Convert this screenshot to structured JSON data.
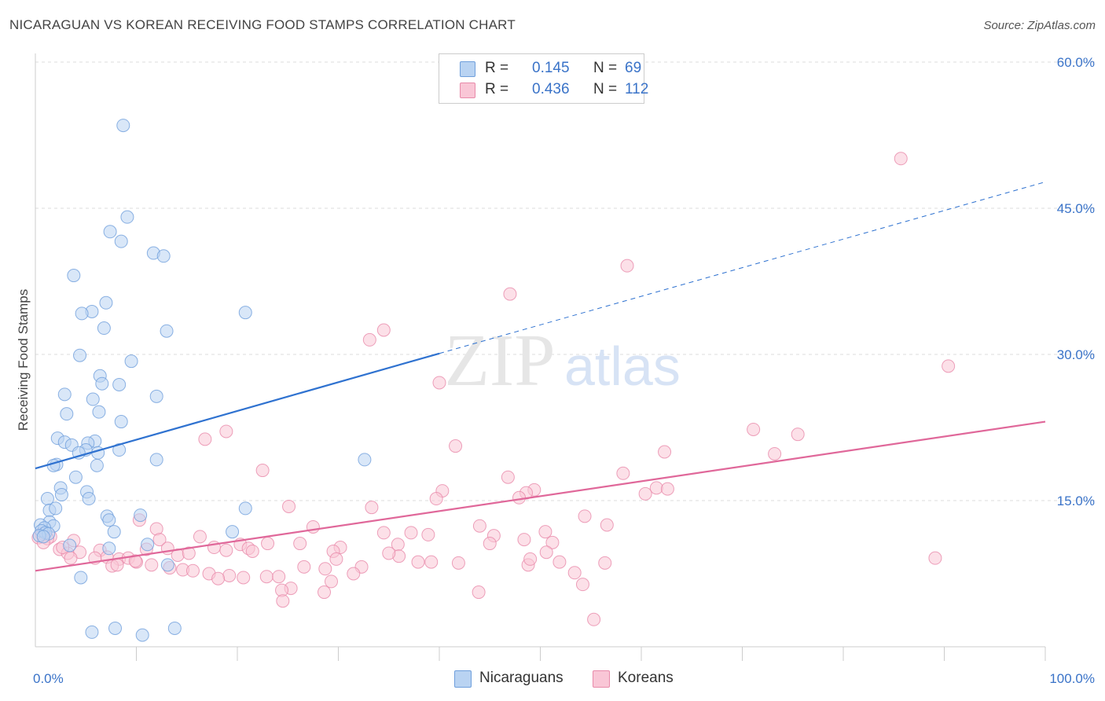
{
  "header": {
    "title": "NICARAGUAN VS KOREAN RECEIVING FOOD STAMPS CORRELATION CHART",
    "source": "Source: ZipAtlas.com"
  },
  "legend": {
    "nicaraguans": {
      "r_label": "R =",
      "r_value": "0.145",
      "n_label": "N =",
      "n_value": "69"
    },
    "koreans": {
      "r_label": "R =",
      "r_value": "0.436",
      "n_label": "N =",
      "n_value": "112"
    }
  },
  "bottom_legend": {
    "nicaraguans": "Nicaraguans",
    "koreans": "Koreans"
  },
  "watermark": {
    "zip": "ZIP",
    "atlas": "atlas"
  },
  "colors": {
    "nicaraguans_fill": "#b9d3f2",
    "nicaraguans_stroke": "#6f9fdc",
    "nicaraguans_line": "#2f72d0",
    "koreans_fill": "#f9c6d6",
    "koreans_stroke": "#e88aaa",
    "koreans_line": "#e0689a",
    "axis_label": "#3a73c8",
    "grid": "#dddddd"
  },
  "chart_data": {
    "type": "scatter",
    "title": "NICARAGUAN VS KOREAN RECEIVING FOOD STAMPS CORRELATION CHART",
    "xlabel": "",
    "ylabel": "Receiving Food Stamps",
    "xlim": [
      0,
      100
    ],
    "ylim": [
      0,
      60
    ],
    "x_ticks": [
      {
        "value": 0,
        "label": "0.0%"
      },
      {
        "value": 100,
        "label": "100.0%"
      }
    ],
    "y_ticks": [
      {
        "value": 15,
        "label": "15.0%"
      },
      {
        "value": 30,
        "label": "30.0%"
      },
      {
        "value": 45,
        "label": "45.0%"
      },
      {
        "value": 60,
        "label": "60.0%"
      }
    ],
    "grid": true,
    "legend_position": "top-center",
    "series": [
      {
        "name": "Nicaraguans",
        "r": 0.145,
        "n": 69,
        "trend": {
          "x0": 0,
          "y0": 18.3,
          "x1": 40,
          "y1": 30.1,
          "dashed_to_x": 100,
          "dashed_to_y": 47.7
        },
        "points": [
          [
            8.7,
            53.5
          ],
          [
            9.1,
            44.1
          ],
          [
            7.4,
            42.6
          ],
          [
            8.5,
            41.6
          ],
          [
            11.7,
            40.4
          ],
          [
            12.7,
            40.1
          ],
          [
            3.8,
            38.1
          ],
          [
            7.0,
            35.3
          ],
          [
            5.6,
            34.4
          ],
          [
            4.6,
            34.2
          ],
          [
            20.8,
            34.3
          ],
          [
            13.0,
            32.4
          ],
          [
            6.8,
            32.7
          ],
          [
            4.4,
            29.9
          ],
          [
            9.5,
            29.3
          ],
          [
            6.4,
            27.8
          ],
          [
            6.6,
            27.0
          ],
          [
            8.3,
            26.9
          ],
          [
            2.9,
            25.9
          ],
          [
            5.7,
            25.4
          ],
          [
            12.0,
            25.7
          ],
          [
            6.3,
            24.1
          ],
          [
            3.1,
            23.9
          ],
          [
            8.5,
            23.1
          ],
          [
            2.2,
            21.4
          ],
          [
            5.9,
            21.1
          ],
          [
            2.9,
            21.0
          ],
          [
            5.2,
            20.9
          ],
          [
            3.6,
            20.7
          ],
          [
            8.3,
            20.2
          ],
          [
            5.0,
            20.2
          ],
          [
            4.3,
            19.9
          ],
          [
            6.2,
            19.9
          ],
          [
            12.0,
            19.2
          ],
          [
            2.1,
            18.7
          ],
          [
            1.8,
            18.6
          ],
          [
            6.1,
            18.6
          ],
          [
            32.6,
            19.2
          ],
          [
            4.0,
            17.4
          ],
          [
            2.5,
            16.3
          ],
          [
            5.1,
            15.9
          ],
          [
            5.3,
            15.2
          ],
          [
            2.6,
            15.6
          ],
          [
            1.2,
            15.2
          ],
          [
            1.4,
            14.0
          ],
          [
            2.0,
            14.2
          ],
          [
            20.8,
            14.2
          ],
          [
            10.4,
            13.5
          ],
          [
            7.1,
            13.4
          ],
          [
            7.3,
            13.0
          ],
          [
            1.4,
            12.8
          ],
          [
            0.5,
            12.5
          ],
          [
            1.8,
            12.4
          ],
          [
            0.9,
            12.2
          ],
          [
            0.6,
            11.9
          ],
          [
            1.0,
            11.7
          ],
          [
            7.8,
            11.8
          ],
          [
            19.5,
            11.8
          ],
          [
            1.3,
            11.6
          ],
          [
            0.4,
            11.4
          ],
          [
            0.8,
            11.3
          ],
          [
            3.4,
            10.4
          ],
          [
            11.1,
            10.5
          ],
          [
            7.3,
            10.1
          ],
          [
            13.1,
            8.4
          ],
          [
            4.5,
            7.1
          ],
          [
            5.6,
            1.5
          ],
          [
            7.9,
            1.9
          ],
          [
            10.6,
            1.2
          ],
          [
            13.8,
            1.9
          ]
        ]
      },
      {
        "name": "Koreans",
        "r": 0.436,
        "n": 112,
        "trend": {
          "x0": 0,
          "y0": 7.8,
          "x1": 100,
          "y1": 23.1
        },
        "points": [
          [
            85.7,
            50.1
          ],
          [
            58.6,
            39.1
          ],
          [
            47.0,
            36.2
          ],
          [
            34.5,
            32.5
          ],
          [
            33.1,
            31.5
          ],
          [
            90.4,
            28.8
          ],
          [
            40.0,
            27.1
          ],
          [
            71.1,
            22.3
          ],
          [
            75.5,
            21.8
          ],
          [
            18.9,
            22.1
          ],
          [
            16.8,
            21.3
          ],
          [
            41.6,
            20.6
          ],
          [
            62.3,
            20.0
          ],
          [
            73.2,
            19.8
          ],
          [
            22.5,
            18.1
          ],
          [
            58.2,
            17.8
          ],
          [
            46.8,
            17.4
          ],
          [
            61.5,
            16.3
          ],
          [
            62.6,
            16.2
          ],
          [
            49.4,
            16.1
          ],
          [
            48.6,
            15.8
          ],
          [
            60.4,
            15.7
          ],
          [
            40.3,
            16.0
          ],
          [
            39.7,
            15.2
          ],
          [
            47.9,
            15.3
          ],
          [
            25.1,
            14.4
          ],
          [
            33.3,
            14.3
          ],
          [
            54.4,
            13.4
          ],
          [
            44.0,
            12.4
          ],
          [
            56.6,
            12.5
          ],
          [
            27.5,
            12.3
          ],
          [
            10.3,
            13.0
          ],
          [
            12.0,
            12.1
          ],
          [
            50.5,
            11.8
          ],
          [
            37.2,
            11.7
          ],
          [
            34.5,
            11.7
          ],
          [
            38.9,
            11.5
          ],
          [
            12.3,
            11.0
          ],
          [
            16.3,
            11.3
          ],
          [
            1.5,
            11.3
          ],
          [
            1.2,
            11.1
          ],
          [
            0.6,
            11.6
          ],
          [
            0.3,
            11.2
          ],
          [
            0.8,
            10.7
          ],
          [
            3.8,
            10.9
          ],
          [
            45.4,
            11.4
          ],
          [
            48.4,
            11.0
          ],
          [
            51.2,
            10.7
          ],
          [
            20.3,
            10.5
          ],
          [
            23.0,
            10.6
          ],
          [
            26.2,
            10.6
          ],
          [
            30.2,
            10.2
          ],
          [
            35.9,
            10.5
          ],
          [
            17.7,
            10.2
          ],
          [
            21.1,
            10.1
          ],
          [
            11.0,
            10.0
          ],
          [
            13.1,
            10.1
          ],
          [
            14.1,
            9.4
          ],
          [
            29.5,
            9.8
          ],
          [
            18.9,
            9.9
          ],
          [
            2.4,
            10.0
          ],
          [
            3.2,
            9.6
          ],
          [
            4.4,
            9.7
          ],
          [
            6.4,
            9.9
          ],
          [
            7.1,
            9.2
          ],
          [
            8.3,
            9.0
          ],
          [
            9.2,
            9.1
          ],
          [
            10.0,
            8.7
          ],
          [
            3.5,
            9.1
          ],
          [
            5.9,
            9.1
          ],
          [
            15.2,
            9.6
          ],
          [
            21.5,
            9.8
          ],
          [
            29.8,
            9.0
          ],
          [
            36.0,
            9.3
          ],
          [
            50.6,
            9.7
          ],
          [
            35.0,
            9.6
          ],
          [
            39.2,
            8.7
          ],
          [
            41.9,
            8.6
          ],
          [
            48.8,
            8.4
          ],
          [
            51.9,
            8.7
          ],
          [
            56.4,
            8.6
          ],
          [
            11.5,
            8.4
          ],
          [
            13.3,
            8.1
          ],
          [
            7.6,
            8.3
          ],
          [
            8.1,
            8.4
          ],
          [
            14.6,
            7.9
          ],
          [
            15.6,
            7.8
          ],
          [
            26.6,
            8.2
          ],
          [
            28.7,
            8.0
          ],
          [
            32.3,
            8.2
          ],
          [
            31.5,
            7.5
          ],
          [
            53.4,
            7.6
          ],
          [
            17.2,
            7.5
          ],
          [
            19.2,
            7.3
          ],
          [
            20.6,
            7.1
          ],
          [
            22.9,
            7.2
          ],
          [
            18.1,
            7.0
          ],
          [
            24.1,
            7.2
          ],
          [
            29.3,
            6.7
          ],
          [
            54.2,
            6.4
          ],
          [
            25.3,
            6.0
          ],
          [
            24.4,
            5.8
          ],
          [
            28.6,
            5.6
          ],
          [
            43.9,
            5.6
          ],
          [
            24.5,
            4.7
          ],
          [
            89.1,
            9.1
          ],
          [
            49.0,
            9.0
          ],
          [
            45.0,
            10.6
          ],
          [
            9.9,
            8.8
          ],
          [
            2.7,
            10.2
          ],
          [
            55.3,
            2.8
          ],
          [
            37.9,
            8.7
          ]
        ]
      }
    ]
  }
}
